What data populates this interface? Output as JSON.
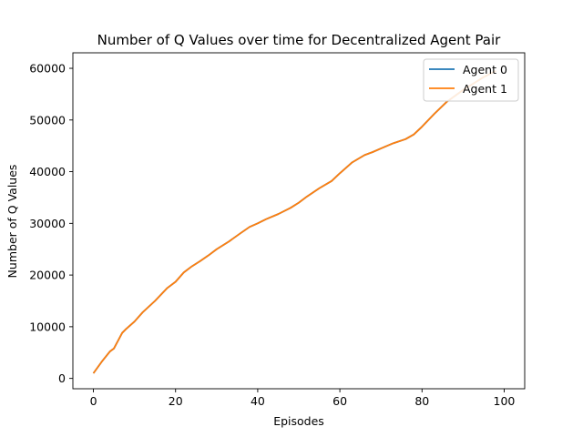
{
  "chart_data": {
    "type": "line",
    "title": "Number of Q Values over time for Decentralized Agent Pair",
    "xlabel": "Episodes",
    "ylabel": "Number of Q Values",
    "xlim": [
      -5,
      105
    ],
    "ylim": [
      -2000,
      63000
    ],
    "xticks": [
      0,
      20,
      40,
      60,
      80,
      100
    ],
    "yticks": [
      0,
      10000,
      20000,
      30000,
      40000,
      50000,
      60000
    ],
    "grid": false,
    "legend_position": "top-right",
    "x": [
      0,
      2,
      4,
      5,
      7,
      8,
      10,
      12,
      15,
      18,
      20,
      22,
      24,
      26,
      28,
      30,
      33,
      36,
      38,
      40,
      42,
      45,
      48,
      50,
      52,
      55,
      58,
      60,
      63,
      66,
      68,
      70,
      73,
      76,
      78,
      80,
      83,
      86,
      90,
      93,
      95,
      98
    ],
    "series": [
      {
        "name": "Agent 0",
        "color": "#1f77b4",
        "values": [
          1000,
          3200,
          5200,
          5800,
          8800,
          9600,
          11000,
          12800,
          15000,
          17500,
          18700,
          20500,
          21700,
          22700,
          23800,
          25000,
          26500,
          28200,
          29300,
          30000,
          30800,
          31800,
          33000,
          34000,
          35200,
          36800,
          38200,
          39700,
          41800,
          43200,
          43800,
          44500,
          45500,
          46300,
          47200,
          48700,
          51200,
          53500,
          55800,
          57300,
          58300,
          59500
        ]
      },
      {
        "name": "Agent 1",
        "color": "#ff7f0e",
        "values": [
          1000,
          3200,
          5200,
          5800,
          8800,
          9600,
          11000,
          12800,
          15000,
          17500,
          18700,
          20500,
          21700,
          22700,
          23800,
          25000,
          26500,
          28200,
          29300,
          30000,
          30800,
          31800,
          33000,
          34000,
          35200,
          36800,
          38200,
          39700,
          41800,
          43200,
          43800,
          44500,
          45500,
          46300,
          47200,
          48700,
          51200,
          53500,
          55800,
          57300,
          58300,
          59500
        ]
      }
    ]
  }
}
